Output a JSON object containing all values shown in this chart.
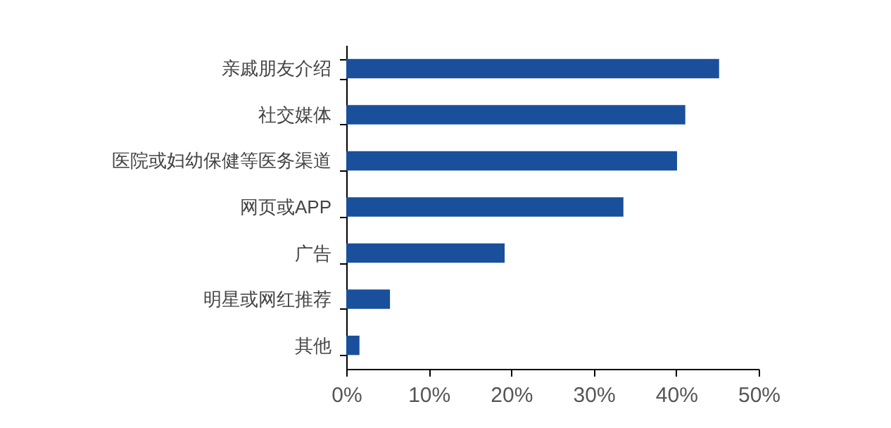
{
  "chart_data": {
    "type": "bar",
    "orientation": "horizontal",
    "categories": [
      "亲戚朋友介绍",
      "社交媒体",
      "医院或妇幼保健等医务渠道",
      "网页或APP",
      "广告",
      "明星或网红推荐",
      "其他"
    ],
    "values": [
      45.2,
      41.1,
      40.1,
      33.6,
      19.2,
      5.3,
      1.6
    ],
    "color": "#1a4f9c",
    "xlim": [
      0,
      50
    ],
    "xticks": [
      {
        "value": 0,
        "label": "0%"
      },
      {
        "value": 10,
        "label": "10%"
      },
      {
        "value": 20,
        "label": "20%"
      },
      {
        "value": 30,
        "label": "30%"
      },
      {
        "value": 40,
        "label": "40%"
      },
      {
        "value": 50,
        "label": "50%"
      }
    ],
    "grid": false
  }
}
